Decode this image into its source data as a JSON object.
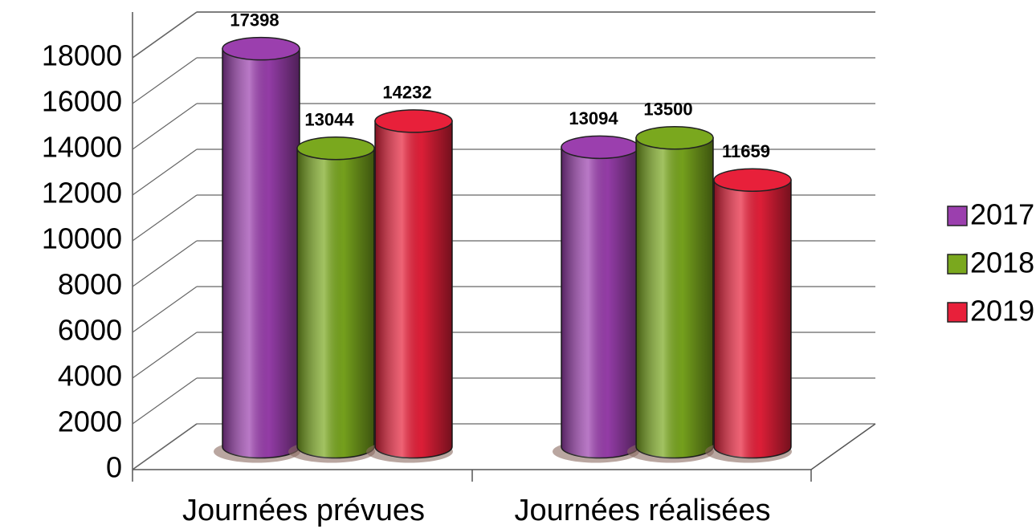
{
  "chart_data": {
    "type": "bar3d",
    "categories": [
      "Journées prévues",
      "Journées réalisées"
    ],
    "series": [
      {
        "name": "2017",
        "color": "#9b3fae",
        "values": [
          17398,
          13094
        ]
      },
      {
        "name": "2018",
        "color": "#7aa81e",
        "values": [
          13044,
          13500
        ]
      },
      {
        "name": "2019",
        "color": "#e8203a",
        "values": [
          14232,
          11659
        ]
      }
    ],
    "ylim": [
      0,
      20000
    ],
    "yticks": [
      0,
      2000,
      4000,
      6000,
      8000,
      10000,
      12000,
      14000,
      16000,
      18000
    ],
    "grid": true,
    "legend": "right"
  }
}
